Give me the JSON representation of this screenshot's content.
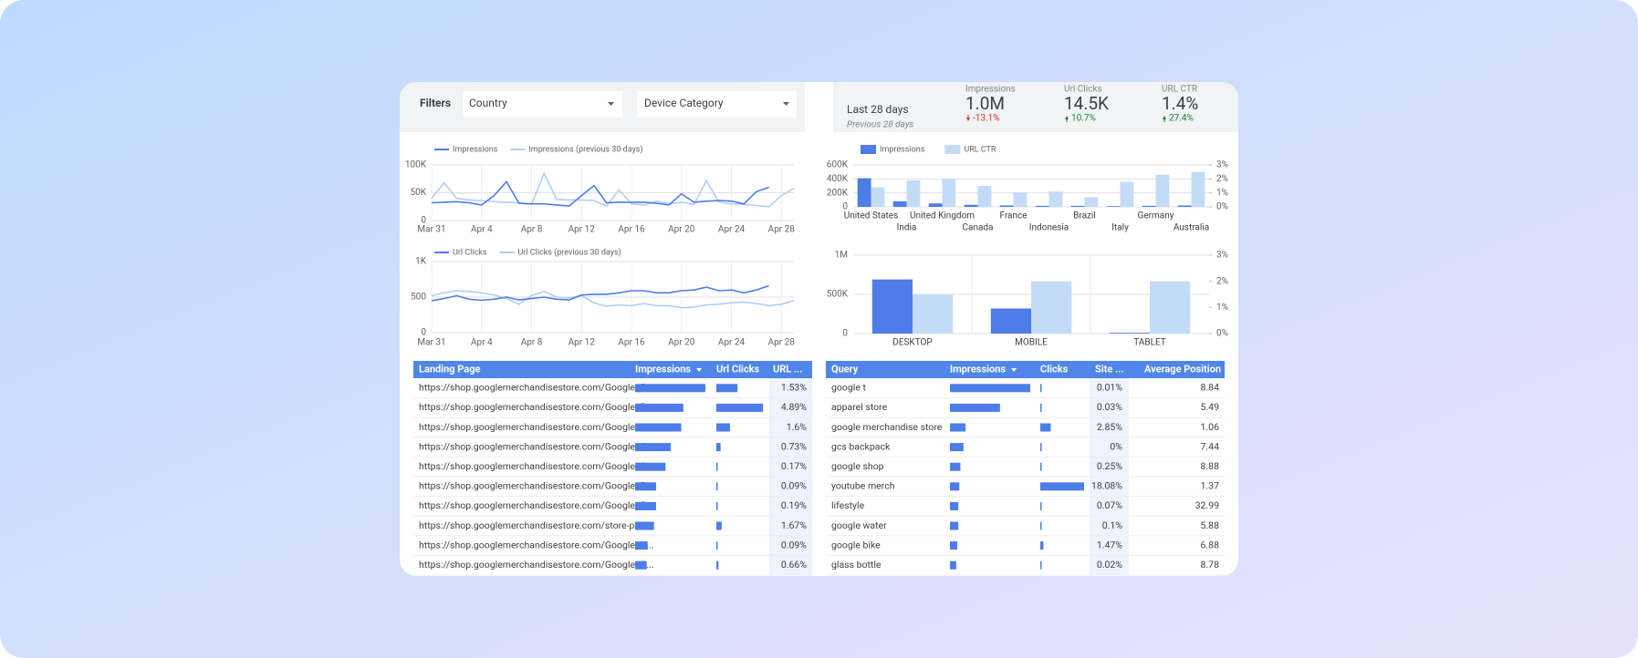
{
  "filters": {
    "label": "Filters",
    "dropdowns": [
      "Country",
      "Device Category"
    ]
  },
  "scorecard": {
    "period": "Last 28 days",
    "comparison": "Previous 28 days",
    "metrics": [
      {
        "name": "Impressions",
        "value": "1.0M",
        "change": "-13.1%",
        "trend": "down",
        "color": "#d93025"
      },
      {
        "name": "Url Clicks",
        "value": "14.5K",
        "change": "10.7%",
        "trend": "up",
        "color": "#188038"
      },
      {
        "name": "URL CTR",
        "value": "1.4%",
        "change": "27.4%",
        "trend": "up",
        "color": "#188038"
      }
    ]
  },
  "chart_data": [
    {
      "type": "line",
      "x": [
        "Mar 31",
        null,
        null,
        null,
        "Apr 4",
        null,
        null,
        null,
        "Apr 8",
        null,
        null,
        null,
        "Apr 12",
        null,
        null,
        null,
        "Apr 16",
        null,
        null,
        null,
        "Apr 20",
        null,
        null,
        null,
        "Apr 24",
        null,
        null,
        null,
        "Apr 28",
        null
      ],
      "series": [
        {
          "name": "Impressions",
          "color": "#4d7de8",
          "values": [
            32000,
            33000,
            34000,
            32000,
            28000,
            45000,
            70000,
            31000,
            30000,
            30000,
            28000,
            26000,
            45000,
            63000,
            32000,
            33000,
            33000,
            33000,
            31000,
            28000,
            48000,
            33000,
            35000,
            36000,
            35000,
            30000,
            52000,
            60000,
            null,
            null
          ]
        },
        {
          "name": "Impressions (previous 30 days)",
          "color": "#b3cdf7",
          "values": [
            40000,
            68000,
            40000,
            37000,
            36000,
            34000,
            33000,
            32000,
            29000,
            85000,
            38000,
            37000,
            37000,
            36000,
            26000,
            55000,
            30000,
            28000,
            35000,
            30000,
            33000,
            29000,
            72000,
            33000,
            30000,
            29000,
            27000,
            25000,
            45000,
            58000
          ]
        }
      ],
      "ylim": [
        0,
        100000
      ],
      "yticks": [
        0,
        {
          "value": 50000,
          "label": "50K"
        },
        {
          "value": 100000,
          "label": "100K"
        }
      ],
      "grid": true
    },
    {
      "type": "line",
      "x": [
        "Mar 31",
        null,
        null,
        null,
        "Apr 4",
        null,
        null,
        null,
        "Apr 8",
        null,
        null,
        null,
        "Apr 12",
        null,
        null,
        null,
        "Apr 16",
        null,
        null,
        null,
        "Apr 20",
        null,
        null,
        null,
        "Apr 24",
        null,
        null,
        null,
        "Apr 28",
        null
      ],
      "series": [
        {
          "name": "Url Clicks",
          "color": "#4d7de8",
          "values": [
            450,
            480,
            520,
            470,
            455,
            470,
            500,
            460,
            480,
            500,
            470,
            460,
            530,
            540,
            540,
            560,
            590,
            590,
            560,
            560,
            590,
            600,
            640,
            590,
            600,
            560,
            600,
            660,
            null,
            null
          ]
        },
        {
          "name": "Url Clicks (previous 30 days)",
          "color": "#b3cdf7",
          "values": [
            520,
            560,
            590,
            580,
            560,
            530,
            480,
            400,
            520,
            580,
            500,
            490,
            520,
            420,
            370,
            390,
            380,
            410,
            380,
            380,
            350,
            360,
            390,
            400,
            420,
            430,
            410,
            380,
            400,
            450
          ]
        }
      ],
      "ylim": [
        0,
        1000
      ],
      "yticks": [
        0,
        500,
        {
          "value": 1000,
          "label": "1K"
        }
      ],
      "grid": true
    },
    {
      "type": "bar",
      "categories": [
        "United States",
        "India",
        "United Kingdom",
        "Canada",
        "France",
        "Indonesia",
        "Brazil",
        "Italy",
        "Germany",
        "Australia"
      ],
      "series": [
        {
          "name": "Impressions",
          "color": "#4d7de8",
          "values": [
            410000,
            80000,
            50000,
            30000,
            20000,
            15000,
            15000,
            10000,
            15000,
            20000
          ]
        },
        {
          "name": "URL CTR",
          "color": "#c4dbf8",
          "axis": "y2",
          "values": [
            1.4,
            1.9,
            2.0,
            1.5,
            1.05,
            1.1,
            0.7,
            1.8,
            2.3,
            2.5
          ]
        }
      ],
      "ylim": [
        0,
        600000
      ],
      "yticks": [
        0,
        {
          "value": 200000,
          "label": "200K"
        },
        {
          "value": 400000,
          "label": "400K"
        },
        {
          "value": 600000,
          "label": "600K"
        }
      ],
      "y2lim": [
        0,
        3
      ],
      "y2ticks": [
        {
          "value": 0,
          "label": "0%"
        },
        {
          "value": 1,
          "label": "1%"
        },
        {
          "value": 2,
          "label": "2%"
        },
        {
          "value": 3,
          "label": "3%"
        }
      ],
      "grid": true,
      "legend": "top"
    },
    {
      "type": "bar",
      "categories": [
        "DESKTOP",
        "MOBILE",
        "TABLET"
      ],
      "series": [
        {
          "name": "Impressions",
          "color": "#4d7de8",
          "values": [
            690000,
            320000,
            10000
          ]
        },
        {
          "name": "URL CTR",
          "color": "#c4dbf8",
          "axis": "y2",
          "values": [
            1.5,
            2.0,
            2.0
          ]
        }
      ],
      "ylim": [
        0,
        1000000
      ],
      "yticks": [
        0,
        {
          "value": 500000,
          "label": "500K"
        },
        {
          "value": 1000000,
          "label": "1M"
        }
      ],
      "y2lim": [
        0,
        3
      ],
      "y2ticks": [
        {
          "value": 0,
          "label": "0%"
        },
        {
          "value": 1,
          "label": "1%"
        },
        {
          "value": 2,
          "label": "2%"
        },
        {
          "value": 3,
          "label": "3%"
        }
      ],
      "grid": true
    }
  ],
  "tables": [
    {
      "columns": [
        "Landing Page",
        "Impressions",
        "Url Clicks",
        "URL ..."
      ],
      "rows": [
        [
          "https://shop.googlemerchandisestore.com/Google+R...",
          67,
          20,
          "1.53%"
        ],
        [
          "https://shop.googlemerchandisestore.com/Google+R...",
          46,
          44,
          "4.89%"
        ],
        [
          "https://shop.googlemerchandisestore.com/Google+R...",
          44,
          13,
          "1.6%"
        ],
        [
          "https://shop.googlemerchandisestore.com/Google+R...",
          34,
          4,
          "0.73%"
        ],
        [
          "https://shop.googlemerchandisestore.com/Google+R...",
          29,
          1,
          "0.17%"
        ],
        [
          "https://shop.googlemerchandisestore.com/Google+R...",
          20,
          1,
          "0.09%"
        ],
        [
          "https://shop.googlemerchandisestore.com/Google+R...",
          20,
          1,
          "0.19%"
        ],
        [
          "https://shop.googlemerchandisestore.com/store-poli...",
          18,
          5,
          "1.67%"
        ],
        [
          "https://shop.googlemerchandisestore.com/Google+R...",
          12,
          1,
          "0.09%"
        ],
        [
          "https://shop.googlemerchandisestore.com/Google+R...",
          11,
          2,
          "0.66%"
        ]
      ]
    },
    {
      "columns": [
        "Query",
        "Impressions",
        "Clicks",
        "Site ...",
        "Average Position"
      ],
      "rows": [
        [
          "google t",
          77,
          1,
          "0.01%",
          8.84
        ],
        [
          "apparel store",
          48,
          1,
          "0.03%",
          5.49
        ],
        [
          "google merchandise store",
          15,
          10,
          "2.85%",
          1.06
        ],
        [
          "gcs backpack",
          13,
          1,
          "0%",
          7.44
        ],
        [
          "google shop",
          10,
          1,
          "0.25%",
          8.88
        ],
        [
          "youtube merch",
          9,
          42,
          "18.08%",
          1.37
        ],
        [
          "lifestyle",
          8,
          1,
          "0.07%",
          32.99
        ],
        [
          "google water",
          8,
          1,
          "0.1%",
          5.88
        ],
        [
          "google bike",
          7,
          3,
          "1.47%",
          6.88
        ],
        [
          "glass bottle",
          6,
          1,
          "0.02%",
          8.78
        ]
      ]
    }
  ]
}
